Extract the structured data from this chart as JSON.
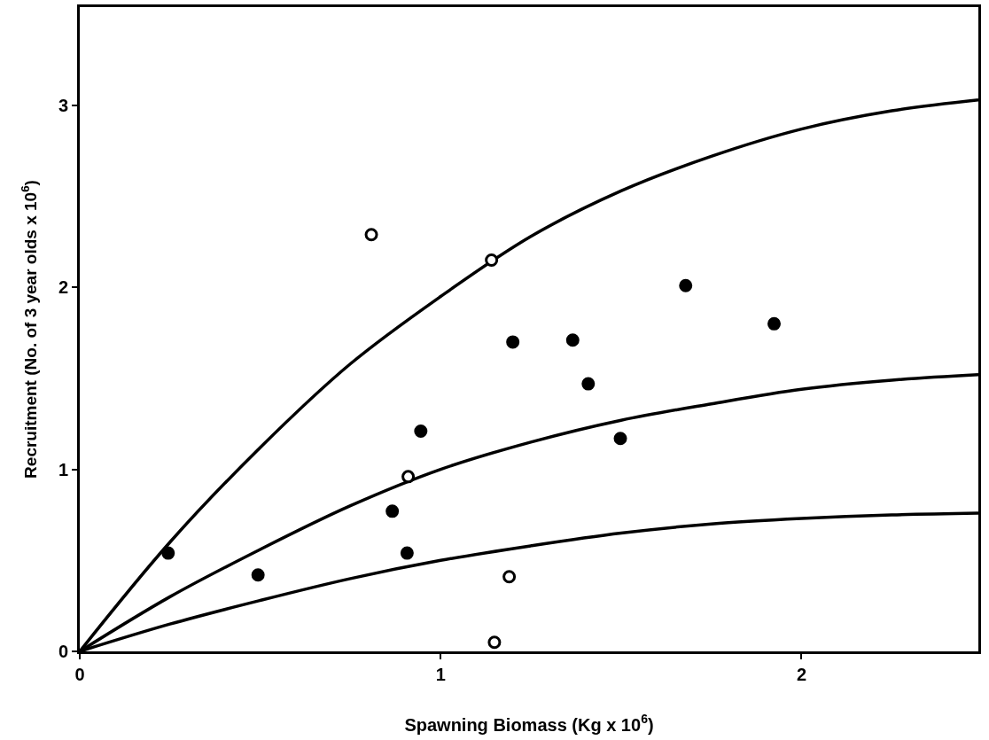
{
  "chart_data": {
    "type": "scatter",
    "xlabel": "Spawning Biomass (Kg x 10$^{6}$)",
    "ylabel": "Recruitment (No. of 3 year olds x 10$^{6}$)",
    "xlim": [
      0,
      2.49
    ],
    "ylim": [
      0,
      3.54
    ],
    "xticks": [
      0,
      1,
      2
    ],
    "yticks": [
      0,
      1,
      2,
      3
    ],
    "series": [
      {
        "type": "line",
        "color": "#000000",
        "marker": "none",
        "line_style": "solid",
        "x": [
          0,
          0.25,
          0.5,
          0.75,
          1.0,
          1.25,
          1.5,
          1.75,
          2.0,
          2.25,
          2.49
        ],
        "values": [
          0,
          0.6,
          1.12,
          1.58,
          1.95,
          2.28,
          2.53,
          2.72,
          2.87,
          2.97,
          3.03
        ]
      },
      {
        "type": "line",
        "color": "#000000",
        "marker": "none",
        "line_style": "solid",
        "x": [
          0,
          0.25,
          0.5,
          0.75,
          1.0,
          1.25,
          1.5,
          1.75,
          2.0,
          2.25,
          2.49
        ],
        "values": [
          0,
          0.3,
          0.56,
          0.8,
          1.0,
          1.15,
          1.27,
          1.36,
          1.44,
          1.49,
          1.52
        ]
      },
      {
        "type": "line",
        "color": "#000000",
        "marker": "none",
        "line_style": "solid",
        "x": [
          0,
          0.25,
          0.5,
          0.75,
          1.0,
          1.25,
          1.5,
          1.75,
          2.0,
          2.25,
          2.49
        ],
        "values": [
          0,
          0.15,
          0.28,
          0.4,
          0.5,
          0.58,
          0.65,
          0.7,
          0.73,
          0.75,
          0.76
        ]
      },
      {
        "color": "#000000",
        "marker": "circle",
        "x": [
          0.245,
          0.494,
          0.945,
          0.866,
          0.907,
          1.2,
          1.366,
          1.409,
          1.498,
          1.679,
          1.924
        ],
        "values": [
          0.54,
          0.42,
          1.21,
          0.77,
          0.54,
          1.7,
          1.71,
          1.47,
          1.17,
          2.01,
          1.8
        ]
      },
      {
        "color": "#ffffff",
        "marker": "circle",
        "x": [
          0.808,
          1.141,
          0.91,
          1.19,
          1.149
        ],
        "values": [
          2.29,
          2.15,
          0.96,
          0.41,
          0.05
        ]
      }
    ]
  }
}
